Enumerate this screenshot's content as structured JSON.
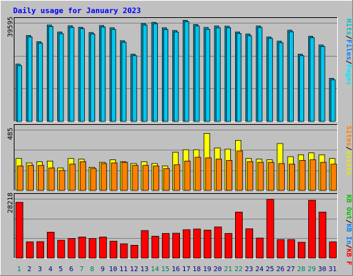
{
  "chart_data": {
    "type": "bar",
    "title": "Daily usage for January 2023",
    "categories": [
      "1",
      "2",
      "3",
      "4",
      "5",
      "6",
      "7",
      "8",
      "9",
      "10",
      "11",
      "12",
      "13",
      "14",
      "15",
      "16",
      "17",
      "18",
      "19",
      "20",
      "21",
      "22",
      "23",
      "24",
      "25",
      "26",
      "27",
      "28",
      "29",
      "30",
      "31"
    ],
    "weekend_days": [
      "1",
      "7",
      "8",
      "14",
      "15",
      "21",
      "22",
      "28",
      "29"
    ],
    "panels": [
      {
        "id": "top",
        "ytick": "39595",
        "ymax": 39595,
        "legend": [
          "Pages",
          "/",
          "Files",
          "/",
          "Hits"
        ],
        "series": [
          {
            "name": "Hits",
            "color": "#00a0c8",
            "values": [
              23000,
              34500,
              32000,
              38700,
              35900,
              38400,
              37800,
              35700,
              38500,
              37600,
              32400,
              27000,
              39300,
              39800,
              37600,
              36500,
              40600,
              38900,
              37700,
              38300,
              38200,
              35900,
              35100,
              38300,
              33900,
              32200,
              36600,
              27000,
              34200,
              30700,
              17300
            ]
          },
          {
            "name": "Files",
            "color": "#00c8f0",
            "values": [
              22400,
              33900,
              31400,
              38100,
              35200,
              37700,
              37200,
              35100,
              37900,
              36900,
              31800,
              26400,
              38700,
              39200,
              36900,
              35900,
              40000,
              38300,
              37000,
              37600,
              37600,
              35300,
              34400,
              37700,
              33300,
              31600,
              36000,
              26400,
              33600,
              30100,
              16700
            ]
          },
          {
            "name": "Pages",
            "color": "#00e8ff",
            "values": [
              0,
              0,
              0,
              0,
              0,
              0,
              0,
              0,
              0,
              0,
              0,
              0,
              0,
              0,
              0,
              0,
              0,
              0,
              0,
              0,
              0,
              0,
              0,
              0,
              0,
              0,
              0,
              0,
              0,
              0,
              0
            ]
          }
        ]
      },
      {
        "id": "middle",
        "ytick": "485",
        "ymax": 485,
        "legend": [
          "Visits",
          "/",
          "Sites"
        ],
        "series": [
          {
            "name": "Visits",
            "color": "#ffff00",
            "values": [
              255,
              220,
              230,
              235,
              180,
              255,
              250,
              185,
              225,
              245,
              230,
              215,
              230,
              215,
              195,
              305,
              325,
              325,
              455,
              340,
              330,
              400,
              255,
              250,
              245,
              375,
              270,
              285,
              300,
              285,
              255
            ]
          },
          {
            "name": "Sites",
            "color": "#ff8000",
            "values": [
              195,
              200,
              200,
              180,
              160,
              210,
              230,
              175,
              215,
              220,
              225,
              200,
              200,
              195,
              175,
              205,
              235,
              265,
              260,
              250,
              240,
              315,
              230,
              225,
              225,
              215,
              210,
              240,
              245,
              225,
              210
            ]
          }
        ]
      },
      {
        "id": "bottom",
        "ytick": "28218",
        "ymax": 28218,
        "legend": [
          "KB F",
          "/",
          "KB In",
          "/",
          "KB Out"
        ],
        "series": [
          {
            "name": "KB F",
            "color": "#ff0000",
            "values": [
              26500,
              7700,
              7800,
              12300,
              8500,
              9300,
              10000,
              9300,
              10000,
              8000,
              6800,
              6100,
              13100,
              10400,
              11700,
              11800,
              13500,
              13800,
              13300,
              14800,
              11700,
              21900,
              13900,
              9500,
              27900,
              8800,
              8800,
              7500,
              27500,
              21900,
              7700
            ]
          }
        ]
      }
    ],
    "colors": {
      "background": "#c0c0c0",
      "frame": "#ffffff",
      "title": "#0000ff",
      "weekday_label": "#000080",
      "weekend_label": "#00805c",
      "grid": "#808080",
      "hits": "#00a0c8",
      "files": "#00c8f0",
      "pages": "#00e8ff",
      "visits": "#ffff00",
      "sites": "#ff8000",
      "kbin": "#0080ff",
      "kbout": "#00c000",
      "kbf": "#ff0000",
      "slash": "#000000"
    },
    "legend_colors": {
      "Pages": "#00e8ff",
      "Files": "#0080ff",
      "Hits": "#00c0c0",
      "Visits": "#e8e800",
      "Sites": "#ff8000",
      "KB F": "#ff0000",
      "KB In": "#0080ff",
      "KB Out": "#00c000",
      "/": "#000000"
    }
  }
}
